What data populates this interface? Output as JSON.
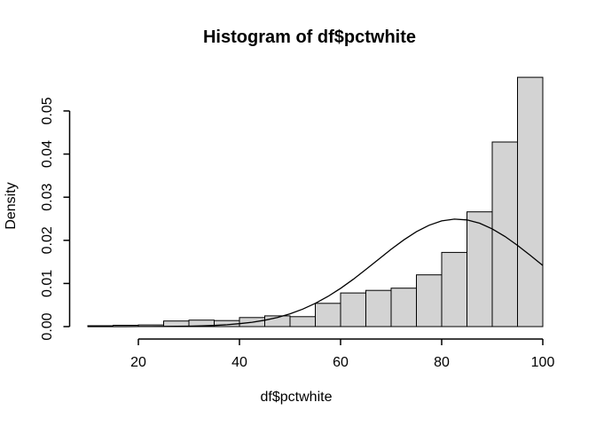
{
  "chart_data": {
    "type": "bar",
    "subtype": "histogram-with-density-curve",
    "title": "Histogram of df$pctwhite",
    "xlabel": "df$pctwhite",
    "ylabel": "Density",
    "xlim": [
      10,
      100
    ],
    "ylim": [
      0,
      0.058
    ],
    "grid": "off",
    "legend": "none",
    "x_ticks": {
      "values": [
        20,
        40,
        60,
        80,
        100
      ],
      "labels": [
        "20",
        "40",
        "60",
        "80",
        "100"
      ]
    },
    "y_ticks": {
      "values": [
        0,
        0.01,
        0.02,
        0.03,
        0.04,
        0.05
      ],
      "labels": [
        "0.00",
        "0.01",
        "0.02",
        "0.03",
        "0.04",
        "0.05"
      ]
    },
    "bars": {
      "breaks": [
        10,
        15,
        20,
        25,
        30,
        35,
        40,
        45,
        50,
        55,
        60,
        65,
        70,
        75,
        80,
        85,
        90,
        95,
        100
      ],
      "density": [
        0.0002,
        0.0003,
        0.0004,
        0.0013,
        0.0015,
        0.0014,
        0.0021,
        0.0025,
        0.0023,
        0.0054,
        0.0078,
        0.0084,
        0.0089,
        0.012,
        0.0172,
        0.0266,
        0.0428,
        0.0578
      ]
    },
    "curve": {
      "description": "normal density overlay",
      "mean": 83,
      "sd": 16,
      "peak_density": 0.0249,
      "points": [
        [
          10,
          7e-07
        ],
        [
          12.5,
          1.5e-06
        ],
        [
          15,
          3e-06
        ],
        [
          17.5,
          5.7e-06
        ],
        [
          20,
          1.07e-05
        ],
        [
          22.5,
          1.96e-05
        ],
        [
          25,
          3.49e-05
        ],
        [
          27.5,
          6.09e-05
        ],
        [
          30,
          0.000103
        ],
        [
          32.5,
          0.000171
        ],
        [
          35,
          0.000277
        ],
        [
          37.5,
          0.000437
        ],
        [
          40,
          0.000672
        ],
        [
          42.5,
          0.001012
        ],
        [
          45,
          0.001486
        ],
        [
          47.5,
          0.002125
        ],
        [
          50,
          0.002972
        ],
        [
          52.5,
          0.004052
        ],
        [
          55,
          0.005394
        ],
        [
          57.5,
          0.007001
        ],
        [
          60,
          0.008875
        ],
        [
          62.5,
          0.010973
        ],
        [
          65,
          0.013247
        ],
        [
          67.5,
          0.015592
        ],
        [
          70,
          0.017929
        ],
        [
          72.5,
          0.020102
        ],
        [
          75,
          0.022005
        ],
        [
          77.5,
          0.023502
        ],
        [
          80,
          0.024496
        ],
        [
          82.5,
          0.024921
        ],
        [
          85,
          0.024738
        ],
        [
          87.5,
          0.023968
        ],
        [
          90,
          0.022655
        ],
        [
          92.5,
          0.0209
        ],
        [
          95,
          0.018824
        ],
        [
          97.5,
          0.016537
        ],
        [
          100,
          0.014181
        ]
      ]
    },
    "colors": {
      "background": "#ffffff",
      "bar_fill": "#d3d3d3",
      "bar_border": "#000000",
      "curve": "#000000",
      "axis": "#000000",
      "text": "#000000"
    }
  }
}
